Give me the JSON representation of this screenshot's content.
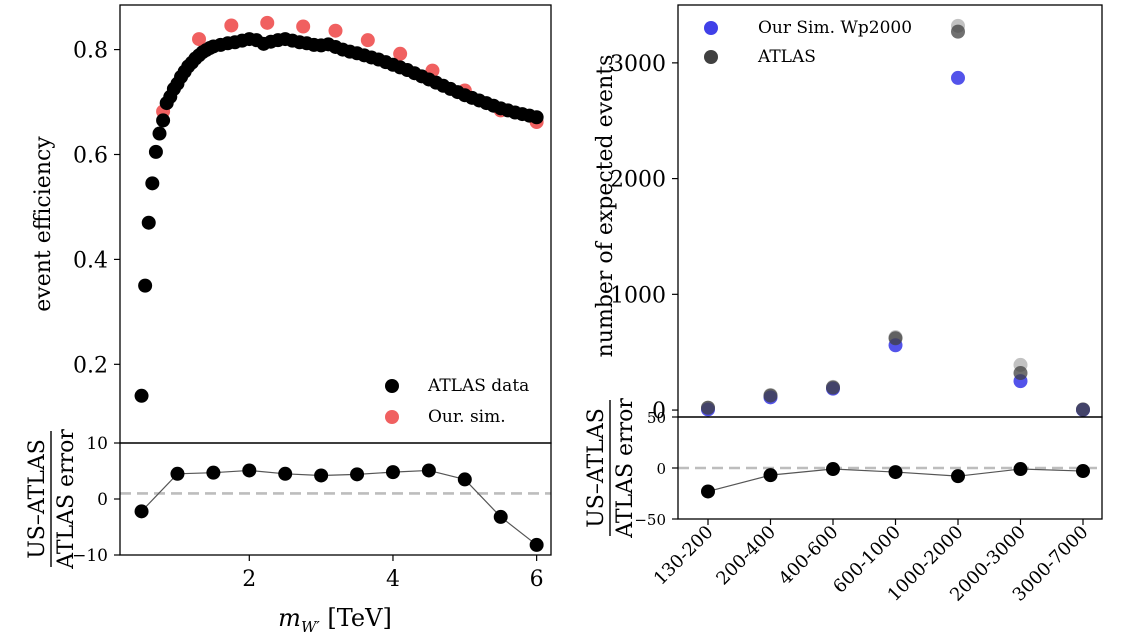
{
  "chart_data": [
    {
      "type": "scatter",
      "panel": "top-left",
      "ylabel": "event efficiency",
      "xlim": [
        0.2,
        6.2
      ],
      "ylim": [
        0.05,
        0.885
      ],
      "yticks": [
        0.2,
        0.4,
        0.6,
        0.8
      ],
      "ytick_labels": [
        "0.2",
        "0.4",
        "0.6",
        "0.8"
      ],
      "legend_position": "lower-right",
      "series": [
        {
          "name": "ATLAS data",
          "color": "#000000",
          "x": [
            0.5,
            0.55,
            0.6,
            0.65,
            0.7,
            0.75,
            0.8,
            0.85,
            0.9,
            0.95,
            1.0,
            1.05,
            1.1,
            1.15,
            1.2,
            1.25,
            1.3,
            1.35,
            1.4,
            1.45,
            1.5,
            1.6,
            1.7,
            1.8,
            1.9,
            2.0,
            2.1,
            2.2,
            2.3,
            2.4,
            2.5,
            2.6,
            2.7,
            2.8,
            2.9,
            3.0,
            3.1,
            3.2,
            3.3,
            3.4,
            3.5,
            3.6,
            3.7,
            3.8,
            3.9,
            4.0,
            4.1,
            4.2,
            4.3,
            4.4,
            4.5,
            4.6,
            4.7,
            4.8,
            4.9,
            5.0,
            5.1,
            5.2,
            5.3,
            5.4,
            5.5,
            5.6,
            5.7,
            5.8,
            5.9,
            6.0
          ],
          "y": [
            0.14,
            0.35,
            0.47,
            0.545,
            0.605,
            0.64,
            0.665,
            0.698,
            0.71,
            0.725,
            0.735,
            0.748,
            0.758,
            0.768,
            0.775,
            0.783,
            0.789,
            0.795,
            0.799,
            0.803,
            0.806,
            0.809,
            0.812,
            0.814,
            0.817,
            0.82,
            0.818,
            0.811,
            0.815,
            0.818,
            0.82,
            0.817,
            0.814,
            0.812,
            0.809,
            0.808,
            0.81,
            0.805,
            0.8,
            0.796,
            0.793,
            0.789,
            0.785,
            0.781,
            0.776,
            0.771,
            0.766,
            0.761,
            0.755,
            0.749,
            0.743,
            0.737,
            0.731,
            0.725,
            0.719,
            0.713,
            0.708,
            0.703,
            0.698,
            0.693,
            0.688,
            0.684,
            0.68,
            0.677,
            0.674,
            0.671
          ]
        },
        {
          "name": "Our. sim.",
          "color": "#f06060",
          "x": [
            0.8,
            1.3,
            1.75,
            2.25,
            2.75,
            3.2,
            3.65,
            4.1,
            4.55,
            5.0,
            5.5,
            6.0
          ],
          "y": [
            0.682,
            0.82,
            0.846,
            0.851,
            0.844,
            0.836,
            0.818,
            0.792,
            0.76,
            0.722,
            0.684,
            0.662
          ]
        }
      ]
    },
    {
      "type": "scatter",
      "panel": "bottom-left",
      "xlabel": "$m_{W'}$ [TeV]",
      "ylabel_numerator": "US–ATLAS",
      "ylabel_denominator": "ATLAS error",
      "xlim": [
        0.2,
        6.2
      ],
      "ylim": [
        -10,
        10
      ],
      "xticks": [
        2,
        4,
        6
      ],
      "xtick_labels": [
        "2",
        "4",
        "6"
      ],
      "yticks": [
        -10,
        0,
        10
      ],
      "ytick_labels": [
        "−10",
        "0",
        "10"
      ],
      "reference_line_y": 1,
      "x": [
        0.5,
        1.0,
        1.5,
        2.0,
        2.5,
        3.0,
        3.5,
        4.0,
        4.5,
        5.0,
        5.5,
        6.0
      ],
      "y": [
        -2.2,
        4.5,
        4.7,
        5.1,
        4.5,
        4.2,
        4.4,
        4.8,
        5.1,
        3.5,
        -3.2,
        -8.2
      ]
    },
    {
      "type": "scatter",
      "panel": "top-right",
      "ylabel": "number of expected events",
      "ylim": [
        -60,
        3500
      ],
      "yticks": [
        0,
        1000,
        2000,
        3000
      ],
      "ytick_labels": [
        "0",
        "1000",
        "2000",
        "3000"
      ],
      "legend_position": "top-left",
      "categories": [
        "130-200",
        "200-400",
        "400-600",
        "600-1000",
        "1000-2000",
        "2000-3000",
        "3000-7000"
      ],
      "series": [
        {
          "name": "Our Sim. Wp2000",
          "color": "#4040e8",
          "values": [
            5,
            110,
            185,
            560,
            2870,
            250,
            2
          ]
        },
        {
          "name": "ATLAS",
          "color": "#404040",
          "values": [
            20,
            125,
            195,
            620,
            3270,
            320,
            5
          ]
        }
      ],
      "atlas_band_marker_values": [
        20,
        130,
        200,
        630,
        3320,
        390,
        6
      ]
    },
    {
      "type": "scatter",
      "panel": "bottom-right",
      "ylabel_numerator": "US–ATLAS",
      "ylabel_denominator": "ATLAS error",
      "ylim": [
        -50,
        50
      ],
      "yticks": [
        -50,
        0,
        50
      ],
      "ytick_labels": [
        "−50",
        "0",
        "50"
      ],
      "reference_line_y": 0,
      "categories": [
        "130-200",
        "200-400",
        "400-600",
        "600-1000",
        "1000-2000",
        "2000-3000",
        "3000-7000"
      ],
      "values": [
        -23,
        -7,
        -1,
        -4,
        -8,
        -1,
        -3
      ]
    }
  ]
}
